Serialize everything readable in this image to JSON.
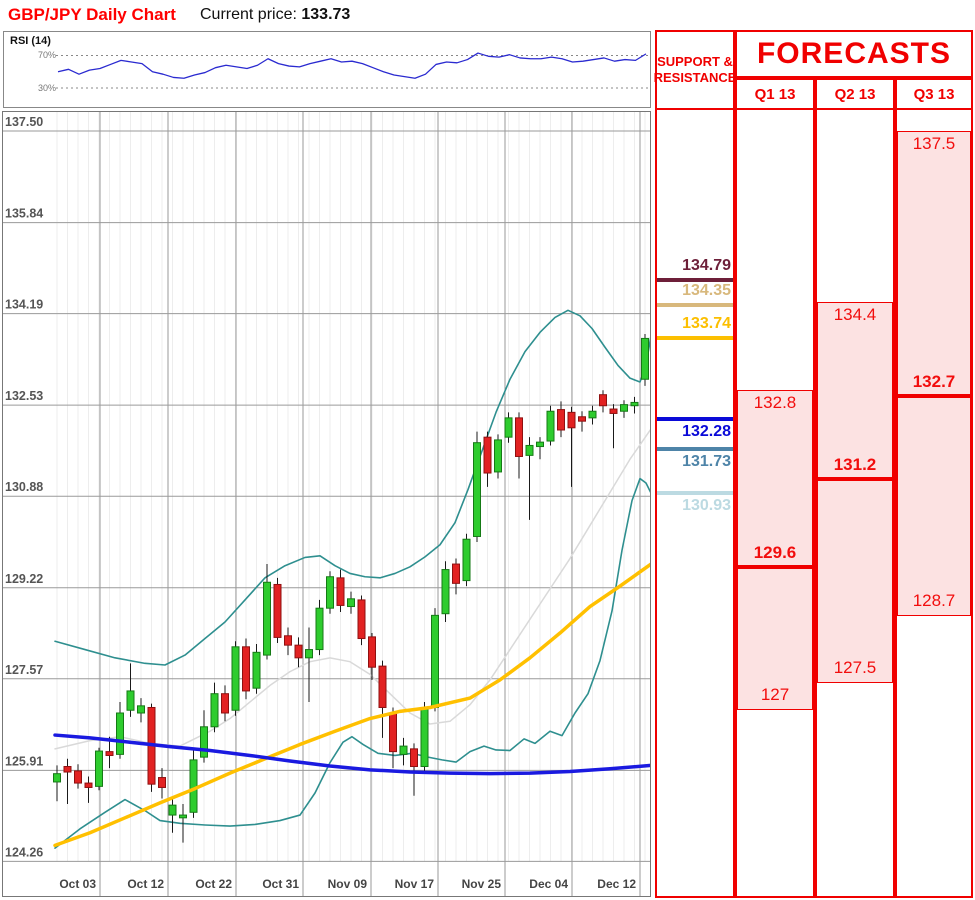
{
  "header": {
    "title": "GBP/JPY Daily Chart",
    "current_price_label": "Current price:",
    "current_price": "133.73"
  },
  "rsi_panel": {
    "label": "RSI (14)",
    "upper_label": "70%",
    "lower_label": "30%"
  },
  "support_resistance": {
    "header_line1": "SUPPORT &",
    "header_line2": "RESISTANCE",
    "levels": [
      {
        "text": "134.79",
        "color": "#6d1f39",
        "side": "above"
      },
      {
        "text": "134.35",
        "color": "#d8b87c",
        "side": "above"
      },
      {
        "text": "133.74",
        "color": "#fcbf00",
        "side": "above"
      },
      {
        "text": "132.28",
        "color": "#0a0ad8",
        "side": "below"
      },
      {
        "text": "131.73",
        "color": "#4e84a8",
        "side": "below"
      },
      {
        "text": "130.93",
        "color": "#bcdae2",
        "side": "below"
      }
    ]
  },
  "forecasts": {
    "title": "FORECASTS",
    "columns": [
      {
        "label": "Q1 13",
        "high": "132.8",
        "mid": "129.6",
        "low": "127"
      },
      {
        "label": "Q2 13",
        "high": "134.4",
        "mid": "131.2",
        "low": "127.5"
      },
      {
        "label": "Q3 13",
        "high": "137.5",
        "mid": "132.7",
        "low": "128.7"
      }
    ]
  },
  "chart_data": {
    "type": "candlestick",
    "title": "GBP/JPY Daily Chart",
    "current_price": 133.73,
    "y_ticks": [
      "137.50",
      "135.84",
      "134.19",
      "132.53",
      "130.88",
      "129.22",
      "127.57",
      "125.91",
      "124.26"
    ],
    "x_ticks": [
      "Oct 03",
      "Oct 12",
      "Oct 22",
      "Oct 31",
      "Nov 09",
      "Nov 17",
      "Nov 25",
      "Dec 04",
      "Dec 12"
    ],
    "ylim": [
      124.26,
      137.5
    ],
    "grid": true,
    "candles_ohlc": [
      [
        125.7,
        126.0,
        125.35,
        125.85
      ],
      [
        125.98,
        126.12,
        125.3,
        125.88
      ],
      [
        125.9,
        126.02,
        125.58,
        125.68
      ],
      [
        125.68,
        125.8,
        125.32,
        125.6
      ],
      [
        125.62,
        126.32,
        125.55,
        126.26
      ],
      [
        126.25,
        126.52,
        125.95,
        126.18
      ],
      [
        126.2,
        127.15,
        126.12,
        126.95
      ],
      [
        127.0,
        127.85,
        126.88,
        127.35
      ],
      [
        126.95,
        127.22,
        126.78,
        127.08
      ],
      [
        127.05,
        127.12,
        125.52,
        125.66
      ],
      [
        125.78,
        125.95,
        125.4,
        125.6
      ],
      [
        125.1,
        125.4,
        124.78,
        125.28
      ],
      [
        125.05,
        125.3,
        124.6,
        125.1
      ],
      [
        125.15,
        126.3,
        125.05,
        126.1
      ],
      [
        126.15,
        127.0,
        126.05,
        126.7
      ],
      [
        126.7,
        127.5,
        126.6,
        127.3
      ],
      [
        127.3,
        127.45,
        126.8,
        126.95
      ],
      [
        127.0,
        128.25,
        126.9,
        128.15
      ],
      [
        128.15,
        128.3,
        127.2,
        127.35
      ],
      [
        127.4,
        128.2,
        127.3,
        128.05
      ],
      [
        128.0,
        129.65,
        127.92,
        129.32
      ],
      [
        129.28,
        129.4,
        128.22,
        128.32
      ],
      [
        128.35,
        128.5,
        128.0,
        128.18
      ],
      [
        128.18,
        128.32,
        127.78,
        127.95
      ],
      [
        127.95,
        128.5,
        127.15,
        128.1
      ],
      [
        128.1,
        129.0,
        128.0,
        128.85
      ],
      [
        128.85,
        129.52,
        128.75,
        129.42
      ],
      [
        129.4,
        129.55,
        128.78,
        128.9
      ],
      [
        128.88,
        129.15,
        128.75,
        129.02
      ],
      [
        129.0,
        129.08,
        128.18,
        128.3
      ],
      [
        128.33,
        128.4,
        127.55,
        127.78
      ],
      [
        127.8,
        127.9,
        126.5,
        127.05
      ],
      [
        126.95,
        127.05,
        125.95,
        126.25
      ],
      [
        126.2,
        126.5,
        126.0,
        126.35
      ],
      [
        126.3,
        126.4,
        125.45,
        125.98
      ],
      [
        125.98,
        127.15,
        125.88,
        127.05
      ],
      [
        127.05,
        128.85,
        126.98,
        128.72
      ],
      [
        128.75,
        129.7,
        128.6,
        129.55
      ],
      [
        129.65,
        129.75,
        129.1,
        129.3
      ],
      [
        129.35,
        130.2,
        129.25,
        130.1
      ],
      [
        130.15,
        132.05,
        130.05,
        131.85
      ],
      [
        131.95,
        132.05,
        131.05,
        131.3
      ],
      [
        131.32,
        132.0,
        131.2,
        131.9
      ],
      [
        131.95,
        132.4,
        131.85,
        132.3
      ],
      [
        132.3,
        132.4,
        131.2,
        131.6
      ],
      [
        131.62,
        131.95,
        130.45,
        131.8
      ],
      [
        131.78,
        131.95,
        131.55,
        131.86
      ],
      [
        131.88,
        132.52,
        131.8,
        132.42
      ],
      [
        132.45,
        132.6,
        131.95,
        132.08
      ],
      [
        132.4,
        132.5,
        131.05,
        132.12
      ],
      [
        132.32,
        132.42,
        132.05,
        132.24
      ],
      [
        132.3,
        132.52,
        132.18,
        132.42
      ],
      [
        132.72,
        132.8,
        132.4,
        132.52
      ],
      [
        132.46,
        132.55,
        131.75,
        132.38
      ],
      [
        132.42,
        132.62,
        132.3,
        132.54
      ],
      [
        132.52,
        132.68,
        132.38,
        132.58
      ],
      [
        133.0,
        133.82,
        132.88,
        133.74
      ]
    ],
    "rsi_values": [
      50,
      53,
      47,
      52,
      54,
      59,
      64,
      62,
      60,
      50,
      47,
      43,
      42,
      46,
      49,
      55,
      58,
      56,
      54,
      58,
      66,
      60,
      57,
      56,
      60,
      63,
      66,
      62,
      63,
      60,
      55,
      50,
      46,
      44,
      42,
      47,
      59,
      62,
      61,
      65,
      73,
      69,
      68,
      71,
      67,
      66,
      66,
      68,
      66,
      62,
      63,
      65,
      67,
      63,
      65,
      64,
      72
    ],
    "rsi_thresholds": [
      70,
      30
    ],
    "overlays": {
      "ma_blue": [
        [
          55,
          126.55
        ],
        [
          90,
          126.5
        ],
        [
          130,
          126.42
        ],
        [
          170,
          126.34
        ],
        [
          210,
          126.27
        ],
        [
          250,
          126.18
        ],
        [
          290,
          126.08
        ],
        [
          330,
          125.99
        ],
        [
          370,
          125.92
        ],
        [
          410,
          125.88
        ],
        [
          450,
          125.86
        ],
        [
          490,
          125.85
        ],
        [
          530,
          125.86
        ],
        [
          570,
          125.89
        ],
        [
          610,
          125.94
        ],
        [
          651,
          126.0
        ]
      ],
      "ma_yellow": [
        [
          55,
          124.55
        ],
        [
          90,
          124.78
        ],
        [
          125,
          125.05
        ],
        [
          160,
          125.32
        ],
        [
          195,
          125.58
        ],
        [
          230,
          125.86
        ],
        [
          265,
          126.12
        ],
        [
          300,
          126.38
        ],
        [
          335,
          126.62
        ],
        [
          370,
          126.85
        ],
        [
          400,
          126.98
        ],
        [
          430,
          127.05
        ],
        [
          470,
          127.22
        ],
        [
          500,
          127.55
        ],
        [
          530,
          127.95
        ],
        [
          560,
          128.4
        ],
        [
          590,
          128.88
        ],
        [
          620,
          129.25
        ],
        [
          651,
          129.65
        ]
      ],
      "sma_gray": [
        [
          55,
          126.3
        ],
        [
          90,
          126.45
        ],
        [
          120,
          126.52
        ],
        [
          150,
          126.4
        ],
        [
          180,
          126.35
        ],
        [
          210,
          126.62
        ],
        [
          230,
          126.85
        ],
        [
          250,
          127.15
        ],
        [
          270,
          127.45
        ],
        [
          290,
          127.7
        ],
        [
          310,
          127.88
        ],
        [
          330,
          127.95
        ],
        [
          350,
          127.88
        ],
        [
          370,
          127.65
        ],
        [
          390,
          127.3
        ],
        [
          410,
          126.95
        ],
        [
          430,
          126.75
        ],
        [
          450,
          126.8
        ],
        [
          470,
          127.1
        ],
        [
          490,
          127.55
        ],
        [
          510,
          128.1
        ],
        [
          530,
          128.65
        ],
        [
          550,
          129.2
        ],
        [
          570,
          129.75
        ],
        [
          590,
          130.35
        ],
        [
          610,
          130.95
        ],
        [
          630,
          131.55
        ],
        [
          651,
          132.1
        ]
      ],
      "boll_upper": [
        [
          55,
          128.25
        ],
        [
          85,
          128.1
        ],
        [
          115,
          127.95
        ],
        [
          145,
          127.85
        ],
        [
          165,
          127.82
        ],
        [
          185,
          128.0
        ],
        [
          205,
          128.3
        ],
        [
          225,
          128.6
        ],
        [
          245,
          129.0
        ],
        [
          265,
          129.4
        ],
        [
          285,
          129.62
        ],
        [
          305,
          129.77
        ],
        [
          320,
          129.8
        ],
        [
          335,
          129.62
        ],
        [
          350,
          129.48
        ],
        [
          365,
          129.42
        ],
        [
          380,
          129.4
        ],
        [
          395,
          129.48
        ],
        [
          410,
          129.6
        ],
        [
          425,
          129.78
        ],
        [
          440,
          130.0
        ],
        [
          455,
          130.4
        ],
        [
          468,
          131.0
        ],
        [
          482,
          131.7
        ],
        [
          496,
          132.4
        ],
        [
          510,
          133.0
        ],
        [
          525,
          133.5
        ],
        [
          540,
          133.85
        ],
        [
          555,
          134.12
        ],
        [
          568,
          134.25
        ],
        [
          580,
          134.15
        ],
        [
          592,
          133.92
        ],
        [
          605,
          133.58
        ],
        [
          618,
          133.25
        ],
        [
          630,
          133.02
        ],
        [
          640,
          132.95
        ],
        [
          646,
          133.25
        ],
        [
          652,
          133.9
        ]
      ],
      "boll_lower": [
        [
          55,
          124.5
        ],
        [
          80,
          124.85
        ],
        [
          105,
          125.15
        ],
        [
          125,
          125.38
        ],
        [
          145,
          125.18
        ],
        [
          160,
          125.0
        ],
        [
          180,
          124.95
        ],
        [
          205,
          124.92
        ],
        [
          230,
          124.9
        ],
        [
          255,
          124.93
        ],
        [
          280,
          125.0
        ],
        [
          300,
          125.1
        ],
        [
          315,
          125.5
        ],
        [
          330,
          126.05
        ],
        [
          343,
          126.42
        ],
        [
          352,
          126.52
        ],
        [
          363,
          126.38
        ],
        [
          378,
          126.22
        ],
        [
          395,
          126.18
        ],
        [
          412,
          126.22
        ],
        [
          428,
          126.15
        ],
        [
          442,
          126.1
        ],
        [
          456,
          126.06
        ],
        [
          470,
          126.25
        ],
        [
          484,
          126.35
        ],
        [
          496,
          126.28
        ],
        [
          510,
          126.27
        ],
        [
          524,
          126.48
        ],
        [
          535,
          126.4
        ],
        [
          550,
          126.62
        ],
        [
          562,
          126.54
        ],
        [
          575,
          126.95
        ],
        [
          588,
          127.3
        ],
        [
          600,
          127.9
        ],
        [
          612,
          128.8
        ],
        [
          622,
          129.9
        ],
        [
          632,
          130.8
        ],
        [
          640,
          131.2
        ],
        [
          646,
          131.12
        ],
        [
          652,
          130.9
        ]
      ]
    },
    "support_resistance_prices": [
      134.79,
      134.35,
      133.74,
      132.28,
      131.73,
      130.93
    ],
    "forecast_quarters": [
      {
        "label": "Q1 13",
        "high": 132.8,
        "mid": 129.6,
        "low": 127.0
      },
      {
        "label": "Q2 13",
        "high": 134.4,
        "mid": 131.2,
        "low": 127.5
      },
      {
        "label": "Q3 13",
        "high": 137.5,
        "mid": 132.7,
        "low": 128.7
      }
    ],
    "colors": {
      "up": "#2ecc2e",
      "up_border": "#157a15",
      "down": "#e22222",
      "down_border": "#8f1010",
      "wick": "#1a1a1a",
      "ma_fast_yellow": "#ffc000",
      "ma_slow_blue": "#1a1ae0",
      "bollinger": "#2e8f8f",
      "sma_gray": "#d9d9d9",
      "rsi_line": "#2a2ad0",
      "accent_red": "#f00000",
      "forecast_pink": "#fce2e2",
      "grid": "#9a9a9a"
    }
  }
}
